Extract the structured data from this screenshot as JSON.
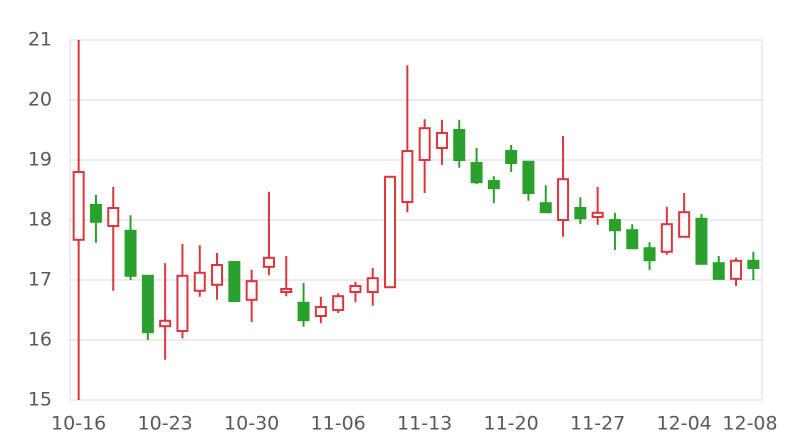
{
  "chart_data": {
    "type": "candlestick",
    "categories": [
      "10-16",
      null,
      null,
      null,
      null,
      "10-23",
      null,
      null,
      null,
      null,
      "10-30",
      null,
      null,
      null,
      null,
      "11-06",
      null,
      null,
      null,
      null,
      "11-13",
      null,
      null,
      null,
      null,
      "11-20",
      null,
      null,
      null,
      null,
      "11-27",
      null,
      null,
      null,
      null,
      "12-04",
      null,
      null,
      null,
      "12-08"
    ],
    "open": [
      17.67,
      18.25,
      17.9,
      17.82,
      17.07,
      16.23,
      16.15,
      16.82,
      16.92,
      17.3,
      16.67,
      17.22,
      16.8,
      16.62,
      16.4,
      16.5,
      16.8,
      16.8,
      16.88,
      18.3,
      19.0,
      19.2,
      19.5,
      18.95,
      18.65,
      19.15,
      18.97,
      18.28,
      18.0,
      18.2,
      18.05,
      18.0,
      17.83,
      17.53,
      17.47,
      17.72,
      18.02,
      17.28,
      17.02,
      17.32
    ],
    "high": [
      21.0,
      18.42,
      18.55,
      18.08,
      17.07,
      17.28,
      17.6,
      17.58,
      17.45,
      17.3,
      17.17,
      18.47,
      17.4,
      16.95,
      16.72,
      16.78,
      16.97,
      17.2,
      18.72,
      20.58,
      19.68,
      19.67,
      19.67,
      19.2,
      18.73,
      19.25,
      18.98,
      18.58,
      19.4,
      18.38,
      18.55,
      18.12,
      17.93,
      17.63,
      18.22,
      18.45,
      18.1,
      17.4,
      17.37,
      17.47
    ],
    "low": [
      15.0,
      17.62,
      16.82,
      17.0,
      16.0,
      15.67,
      16.03,
      16.72,
      16.67,
      16.63,
      16.3,
      17.08,
      16.73,
      16.22,
      16.28,
      16.45,
      16.63,
      16.57,
      16.88,
      18.13,
      18.45,
      18.92,
      18.87,
      18.6,
      18.28,
      18.8,
      18.32,
      18.13,
      17.72,
      17.93,
      17.92,
      17.5,
      17.53,
      17.17,
      17.42,
      17.72,
      17.27,
      17.0,
      16.9,
      17.0
    ],
    "close": [
      18.8,
      17.97,
      18.2,
      17.07,
      16.13,
      16.32,
      17.07,
      17.12,
      17.25,
      16.65,
      16.98,
      17.37,
      16.85,
      16.33,
      16.55,
      16.73,
      16.9,
      17.03,
      18.72,
      19.15,
      19.53,
      19.45,
      19.0,
      18.63,
      18.53,
      18.95,
      18.45,
      18.13,
      18.68,
      18.03,
      18.12,
      17.83,
      17.53,
      17.33,
      17.93,
      18.13,
      17.27,
      17.02,
      17.32,
      17.2
    ],
    "up_color": "#d9363e",
    "down_color": "#2ca02c",
    "ylim": [
      15,
      21
    ],
    "yticks": [
      15,
      16,
      17,
      18,
      19,
      20,
      21
    ],
    "grid": true
  }
}
